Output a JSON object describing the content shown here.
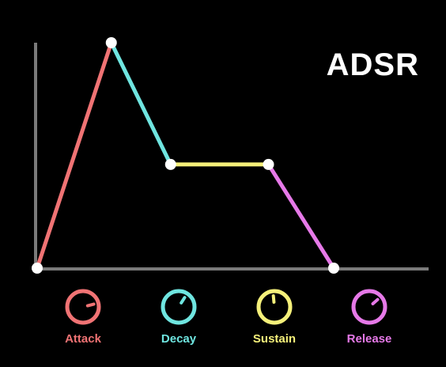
{
  "title": "ADSR",
  "colors": {
    "background": "#000000",
    "axis": "#7a7a7a",
    "node": "#ffffff",
    "attack": "#f07374",
    "decay": "#6fe5e0",
    "sustain": "#f5f07a",
    "release": "#e679e8"
  },
  "stages": [
    {
      "key": "attack",
      "label": "Attack",
      "color": "#f07374",
      "knob_level": 0.78
    },
    {
      "key": "decay",
      "label": "Decay",
      "color": "#6fe5e0",
      "knob_level": 0.62
    },
    {
      "key": "sustain",
      "label": "Sustain",
      "color": "#f5f07a",
      "knob_level": 0.48
    },
    {
      "key": "release",
      "label": "Release",
      "color": "#e679e8",
      "knob_level": 0.68
    }
  ],
  "envelope": {
    "points": [
      {
        "t": 0.0,
        "level": 0.0
      },
      {
        "t": 0.25,
        "level": 1.0
      },
      {
        "t": 0.45,
        "level": 0.46
      },
      {
        "t": 0.78,
        "level": 0.46
      },
      {
        "t": 1.0,
        "level": 0.0
      }
    ]
  }
}
